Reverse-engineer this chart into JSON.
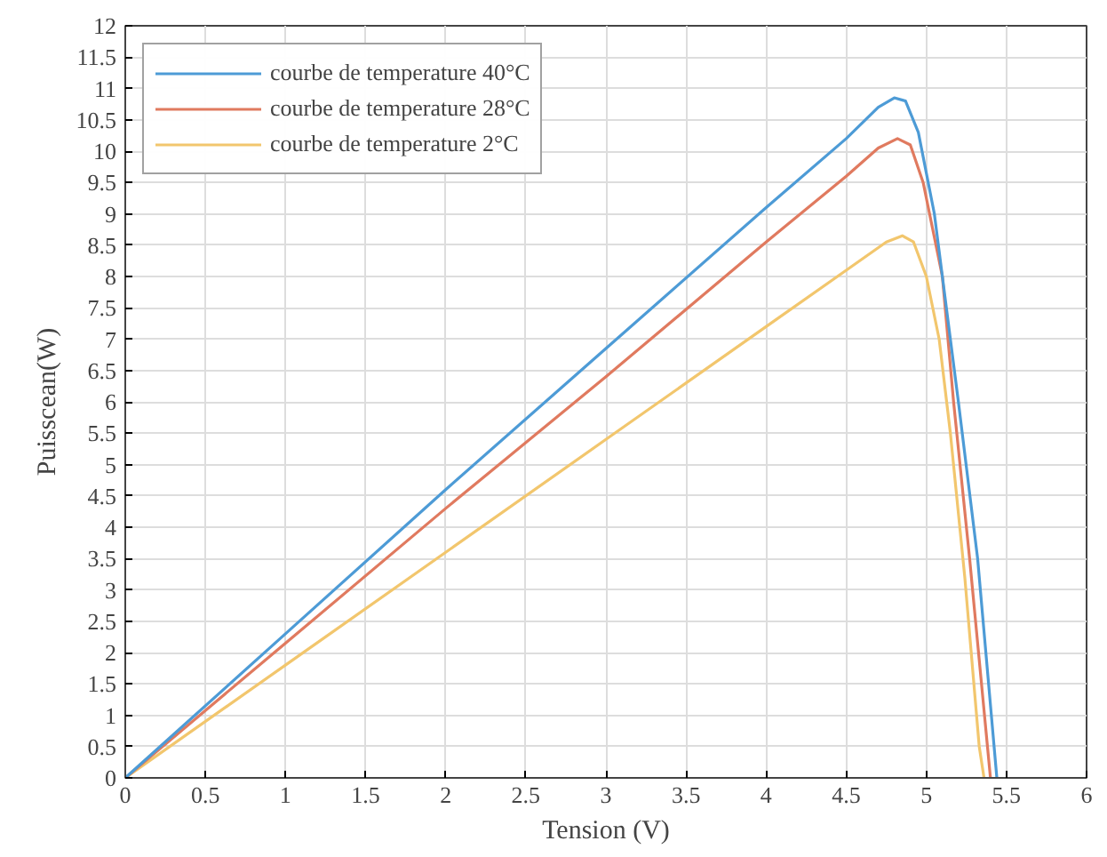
{
  "chart_data": {
    "type": "line",
    "xlabel": "Tension (V)",
    "ylabel": "Puisscean(W)",
    "xlim": [
      0,
      6
    ],
    "ylim": [
      0,
      12
    ],
    "xticks": [
      0,
      0.5,
      1,
      1.5,
      2,
      2.5,
      3,
      3.5,
      4,
      4.5,
      5,
      5.5,
      6
    ],
    "yticks": [
      0,
      0.5,
      1,
      1.5,
      2,
      2.5,
      3,
      3.5,
      4,
      4.5,
      5,
      5.5,
      6,
      6.5,
      7,
      7.5,
      8,
      8.5,
      9,
      9.5,
      10,
      10.5,
      11,
      11.5,
      12
    ],
    "grid": true,
    "legend": "top left",
    "marker": "none",
    "line_style": "solid",
    "series": [
      {
        "name": "courbe de temperature 40°C",
        "color": "#4d9bd6",
        "x": [
          0,
          1,
          2,
          3,
          4,
          4.5,
          4.7,
          4.8,
          4.87,
          4.95,
          5.05,
          5.2,
          5.32,
          5.44
        ],
        "values": [
          0,
          2.3,
          4.6,
          6.85,
          9.1,
          10.2,
          10.7,
          10.85,
          10.8,
          10.3,
          9,
          6,
          3.5,
          0
        ]
      },
      {
        "name": "courbe de temperature 28°C",
        "color": "#e07a5f",
        "x": [
          0,
          1,
          2,
          3,
          4,
          4.5,
          4.7,
          4.82,
          4.9,
          4.98,
          5.1,
          5.17,
          5.27,
          5.4
        ],
        "values": [
          0,
          2.15,
          4.3,
          6.4,
          8.55,
          9.6,
          10.05,
          10.2,
          10.1,
          9.5,
          8,
          6,
          3.5,
          0
        ]
      },
      {
        "name": "courbe de temperature 2°C",
        "color": "#f2c66d",
        "x": [
          0,
          1,
          2,
          3,
          4,
          4.5,
          4.75,
          4.85,
          4.92,
          5.0,
          5.08,
          5.15,
          5.24,
          5.33,
          5.36
        ],
        "values": [
          0,
          1.8,
          3.6,
          5.4,
          7.2,
          8.1,
          8.55,
          8.65,
          8.55,
          8.0,
          7,
          5.5,
          3.2,
          0.5,
          0
        ]
      }
    ]
  }
}
